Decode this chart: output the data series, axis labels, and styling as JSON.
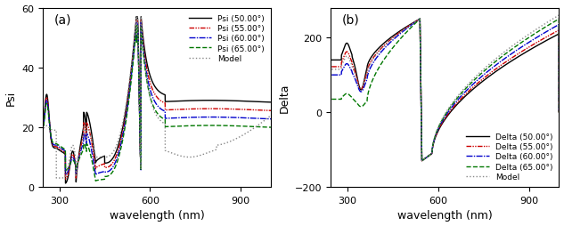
{
  "title_a": "(a)",
  "title_b": "(b)",
  "xlabel": "wavelength (nm)",
  "ylabel_a": "Psi",
  "ylabel_b": "Delta",
  "xlim": [
    245,
    1000
  ],
  "ylim_a": [
    0,
    60
  ],
  "ylim_b": [
    -200,
    280
  ],
  "yticks_a": [
    0,
    20,
    40,
    60
  ],
  "yticks_b": [
    -200,
    0,
    200
  ],
  "xticks": [
    300,
    600,
    900
  ],
  "colors": [
    "#000000",
    "#cc0000",
    "#0000cc",
    "#007700",
    "#888888"
  ],
  "legend_a": [
    "Psi (50.00°)",
    "Psi (55.00°)",
    "Psi (60.00°)",
    "Psi (65.00°)",
    "Model"
  ],
  "legend_b": [
    "Delta (50.00°)",
    "Delta (55.00°)",
    "Delta (60.00°)",
    "Delta (65.00°)",
    "Model"
  ],
  "background_color": "#ffffff",
  "lw": 1.0,
  "fontsize_label": 9,
  "fontsize_legend": 6.5,
  "fontsize_title": 10,
  "fontsize_tick": 8
}
